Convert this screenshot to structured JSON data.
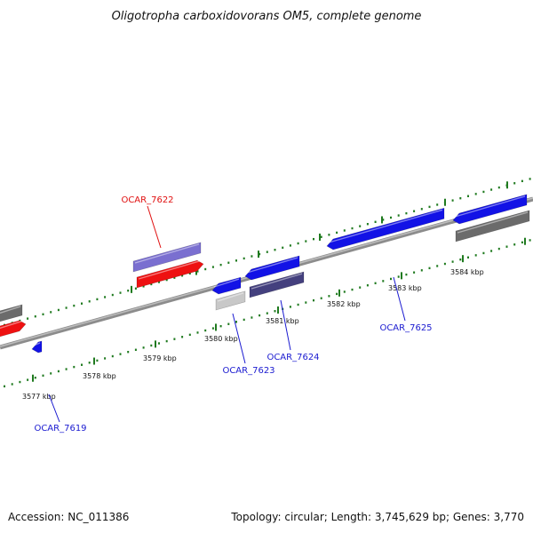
{
  "title": "Oligotropha carboxidovorans OM5, complete genome",
  "footer": {
    "accession": "Accession: NC_011386",
    "summary": "Topology: circular; Length: 3,745,629 bp; Genes: 3,770"
  },
  "colors": {
    "backbone": "#8c8c8c",
    "tick": "#1f7a1f",
    "forward_cds_blue": "#1212e6",
    "red_gene": "#ee1111",
    "purple_gene": "#7a6fd0",
    "gray_gene": "#6b6b6b",
    "lightgray_gene": "#c8c8c8",
    "navy_gene": "#44407e",
    "label_red": "#e01010",
    "label_blue": "#1a1ad0"
  },
  "scale_labels": [
    "3577 kbp",
    "3578 kbp",
    "3579 kbp",
    "3580 kbp",
    "3581 kbp",
    "3582 kbp",
    "3583 kbp",
    "3584 kbp"
  ],
  "gene_labels": [
    {
      "text": "OCAR_7622",
      "color": "label_red"
    },
    {
      "text": "OCAR_7619",
      "color": "label_blue"
    },
    {
      "text": "OCAR_7623",
      "color": "label_blue"
    },
    {
      "text": "OCAR_7624",
      "color": "label_blue"
    },
    {
      "text": "OCAR_7625",
      "color": "label_blue"
    }
  ]
}
